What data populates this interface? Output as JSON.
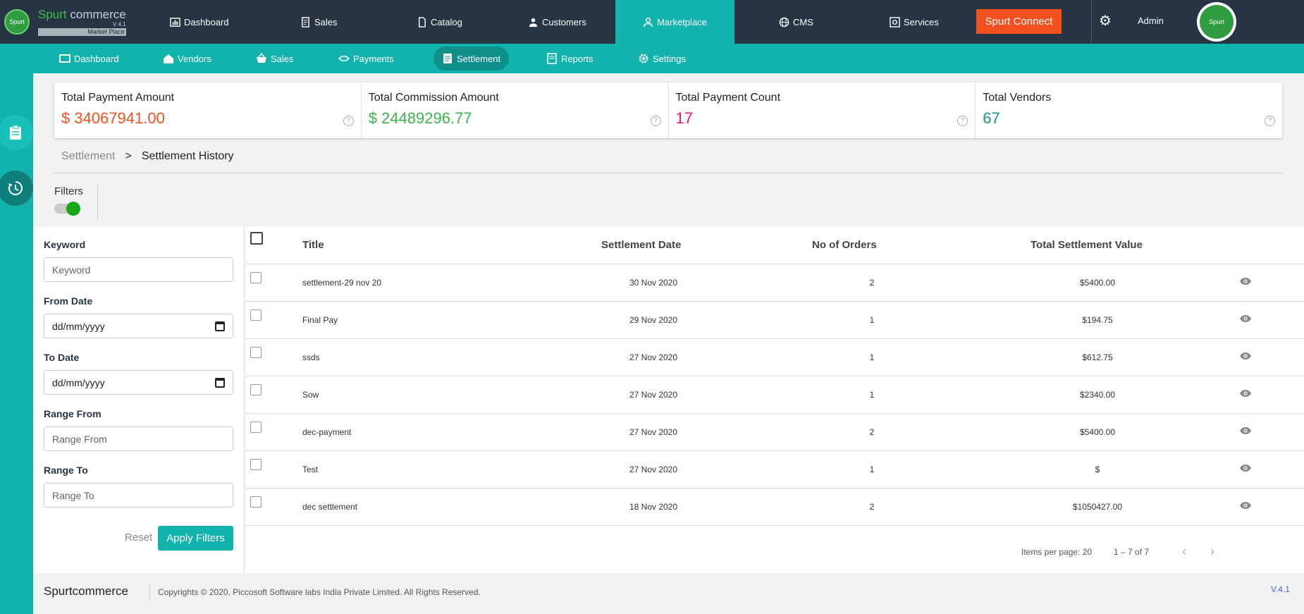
{
  "colors": {
    "topbar": "#263444",
    "accent": "#13b3ad",
    "connect": "#f4511e"
  },
  "logo": {
    "word1": "Spurt",
    "word2": "commerce",
    "version": "V 4.1",
    "tag": "Market Place",
    "badge": "Spurt"
  },
  "topnav": [
    {
      "label": "Dashboard",
      "icon": "dashboard-icon"
    },
    {
      "label": "Sales",
      "icon": "sales-icon"
    },
    {
      "label": "Catalog",
      "icon": "catalog-icon"
    },
    {
      "label": "Customers",
      "icon": "customers-icon"
    },
    {
      "label": "Marketplace",
      "icon": "marketplace-icon",
      "active": true
    },
    {
      "label": "CMS",
      "icon": "cms-icon"
    },
    {
      "label": "Services",
      "icon": "services-icon"
    }
  ],
  "connect_label": "Spurt Connect",
  "admin_label": "Admin",
  "avatar_text": "Spurt",
  "subnav": [
    {
      "label": "Dashboard",
      "icon": "dashboard-icon"
    },
    {
      "label": "Vendors",
      "icon": "vendors-icon"
    },
    {
      "label": "Sales",
      "icon": "basket-icon"
    },
    {
      "label": "Payments",
      "icon": "payments-icon"
    },
    {
      "label": "Settlement",
      "icon": "settlement-icon",
      "active": true
    },
    {
      "label": "Reports",
      "icon": "reports-icon"
    },
    {
      "label": "Settings",
      "icon": "settings-icon"
    }
  ],
  "stats": [
    {
      "label": "Total Payment Amount",
      "value": "$ 34067941.00",
      "color": "#f4511e"
    },
    {
      "label": "Total Commission Amount",
      "value": "$ 24489296.77",
      "color": "#3bb54a"
    },
    {
      "label": "Total Payment Count",
      "value": "17",
      "color": "#e91e63"
    },
    {
      "label": "Total Vendors",
      "value": "67",
      "color": "#13958f"
    }
  ],
  "stat_help": "?",
  "breadcrumb": {
    "parent": "Settlement",
    "sep": ">",
    "current": "Settlement History"
  },
  "filters_label": "Filters",
  "filter": {
    "keyword_label": "Keyword",
    "keyword_placeholder": "Keyword",
    "from_label": "From Date",
    "from_placeholder": "dd/mm/yyyy",
    "to_label": "To Date",
    "to_placeholder": "dd/mm/yyyy",
    "range_from_label": "Range From",
    "range_from_placeholder": "Range From",
    "range_to_label": "Range To",
    "range_to_placeholder": "Range To",
    "reset": "Reset",
    "apply": "Apply Filters"
  },
  "table": {
    "headers": [
      "Title",
      "Settlement Date",
      "No of Orders",
      "Total Settlement Value"
    ],
    "rows": [
      {
        "title": "settlement-29 nov 20",
        "date": "30 Nov 2020",
        "orders": "2",
        "value": "$5400.00"
      },
      {
        "title": "Final Pay",
        "date": "29 Nov 2020",
        "orders": "1",
        "value": "$194.75"
      },
      {
        "title": "ssds",
        "date": "27 Nov 2020",
        "orders": "1",
        "value": "$612.75"
      },
      {
        "title": "Sow",
        "date": "27 Nov 2020",
        "orders": "1",
        "value": "$2340.00"
      },
      {
        "title": "dec-payment",
        "date": "27 Nov 2020",
        "orders": "2",
        "value": "$5400.00"
      },
      {
        "title": "Test",
        "date": "27 Nov 2020",
        "orders": "1",
        "value": "$"
      },
      {
        "title": "dec settlement",
        "date": "18 Nov 2020",
        "orders": "2",
        "value": "$1050427.00"
      }
    ]
  },
  "pager": {
    "items_per_page": "Items per page: 20",
    "range": "1 – 7 of 7",
    "prev": "‹",
    "next": "›"
  },
  "footer": {
    "brand": "Spurtcommerce",
    "copyright": "Copyrights © 2020, Piccosoft Software labs India Private Limited. All Rights Reserved.",
    "version": "V.4.1"
  }
}
